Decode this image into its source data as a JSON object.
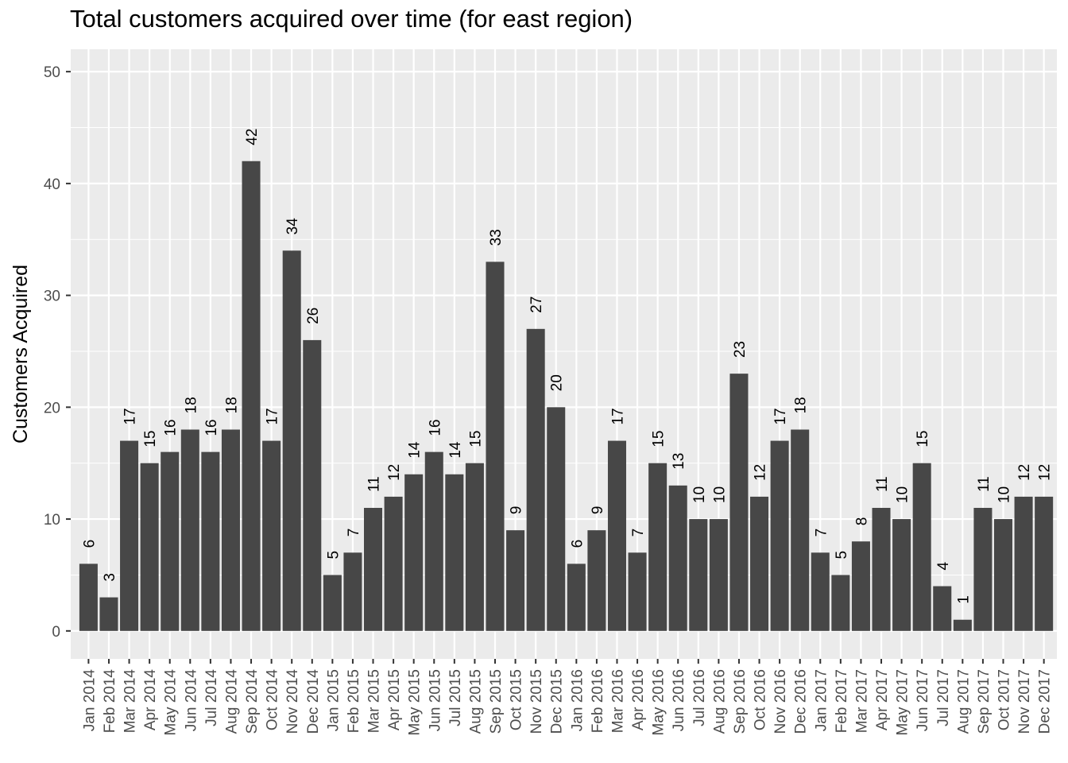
{
  "chart_data": {
    "type": "bar",
    "title": "Total customers acquired over time (for east region)",
    "xlabel": "",
    "ylabel": "Customers Acquired",
    "ylim": [
      0,
      52
    ],
    "yticks": [
      0,
      10,
      20,
      30,
      40,
      50
    ],
    "grid": true,
    "legend": "none",
    "categories": [
      "Jan 2014",
      "Feb 2014",
      "Mar 2014",
      "Apr 2014",
      "May 2014",
      "Jun 2014",
      "Jul 2014",
      "Aug 2014",
      "Sep 2014",
      "Oct 2014",
      "Nov 2014",
      "Dec 2014",
      "Jan 2015",
      "Feb 2015",
      "Mar 2015",
      "Apr 2015",
      "May 2015",
      "Jun 2015",
      "Jul 2015",
      "Aug 2015",
      "Sep 2015",
      "Oct 2015",
      "Nov 2015",
      "Dec 2015",
      "Jan 2016",
      "Feb 2016",
      "Mar 2016",
      "Apr 2016",
      "May 2016",
      "Jun 2016",
      "Jul 2016",
      "Aug 2016",
      "Sep 2016",
      "Oct 2016",
      "Nov 2016",
      "Dec 2016",
      "Jan 2017",
      "Feb 2017",
      "Mar 2017",
      "Apr 2017",
      "May 2017",
      "Jun 2017",
      "Jul 2017",
      "Aug 2017",
      "Sep 2017",
      "Oct 2017",
      "Nov 2017",
      "Dec 2017"
    ],
    "values": [
      6,
      3,
      17,
      15,
      16,
      18,
      16,
      18,
      42,
      17,
      34,
      26,
      5,
      7,
      11,
      12,
      14,
      16,
      14,
      15,
      33,
      9,
      27,
      20,
      6,
      9,
      17,
      7,
      15,
      13,
      10,
      10,
      23,
      12,
      17,
      18,
      7,
      5,
      8,
      11,
      10,
      15,
      4,
      1,
      11,
      10,
      12,
      12
    ],
    "colors": {
      "bar": "#474747",
      "panel": "#ebebeb",
      "grid": "#ffffff"
    }
  }
}
